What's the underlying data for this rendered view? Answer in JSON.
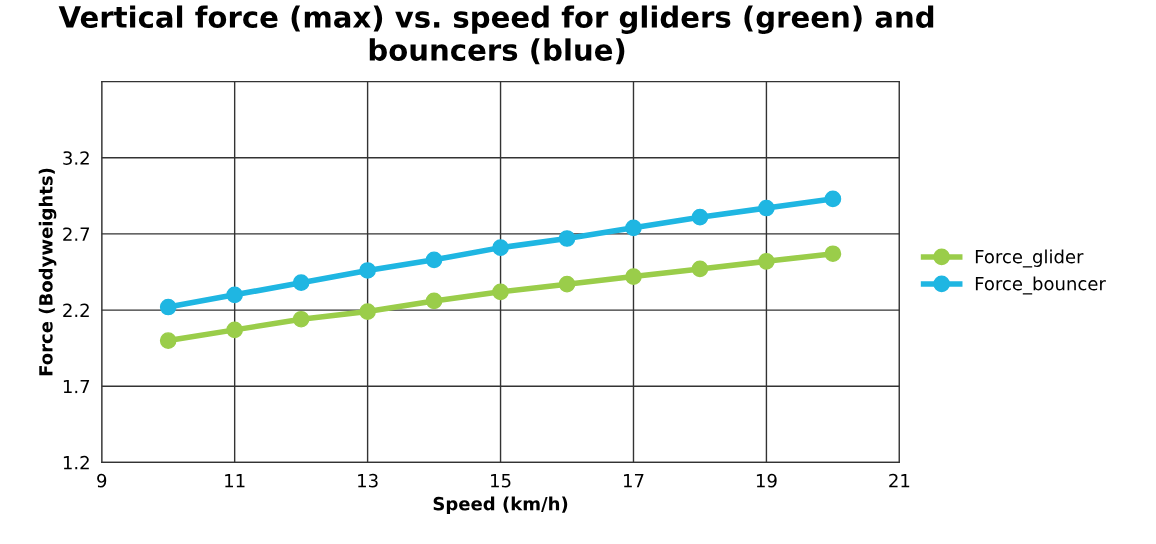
{
  "chart_data": {
    "type": "line",
    "title": "Vertical force (max) vs. speed for gliders (green) and bouncers (blue)",
    "xlabel": "Speed (km/h)",
    "ylabel": "Force (Bodyweights)",
    "x": [
      10,
      11,
      12,
      13,
      14,
      15,
      16,
      17,
      18,
      19,
      20
    ],
    "series": [
      {
        "name": "Force_glider",
        "color": "#9acd4a",
        "values": [
          2.0,
          2.07,
          2.14,
          2.19,
          2.26,
          2.32,
          2.37,
          2.42,
          2.47,
          2.52,
          2.57
        ]
      },
      {
        "name": "Force_bouncer",
        "color": "#1fb6e2",
        "values": [
          2.22,
          2.3,
          2.38,
          2.46,
          2.53,
          2.61,
          2.67,
          2.74,
          2.81,
          2.87,
          2.93
        ]
      }
    ],
    "xlim": [
      9,
      21
    ],
    "xticks": [
      9,
      11,
      13,
      15,
      17,
      19,
      21
    ],
    "ylim": [
      1.2,
      3.7
    ],
    "yticks": [
      1.2,
      1.7,
      2.2,
      2.7,
      3.2
    ],
    "grid": true,
    "legend": "right",
    "marker": "circle",
    "line_style": "solid"
  }
}
